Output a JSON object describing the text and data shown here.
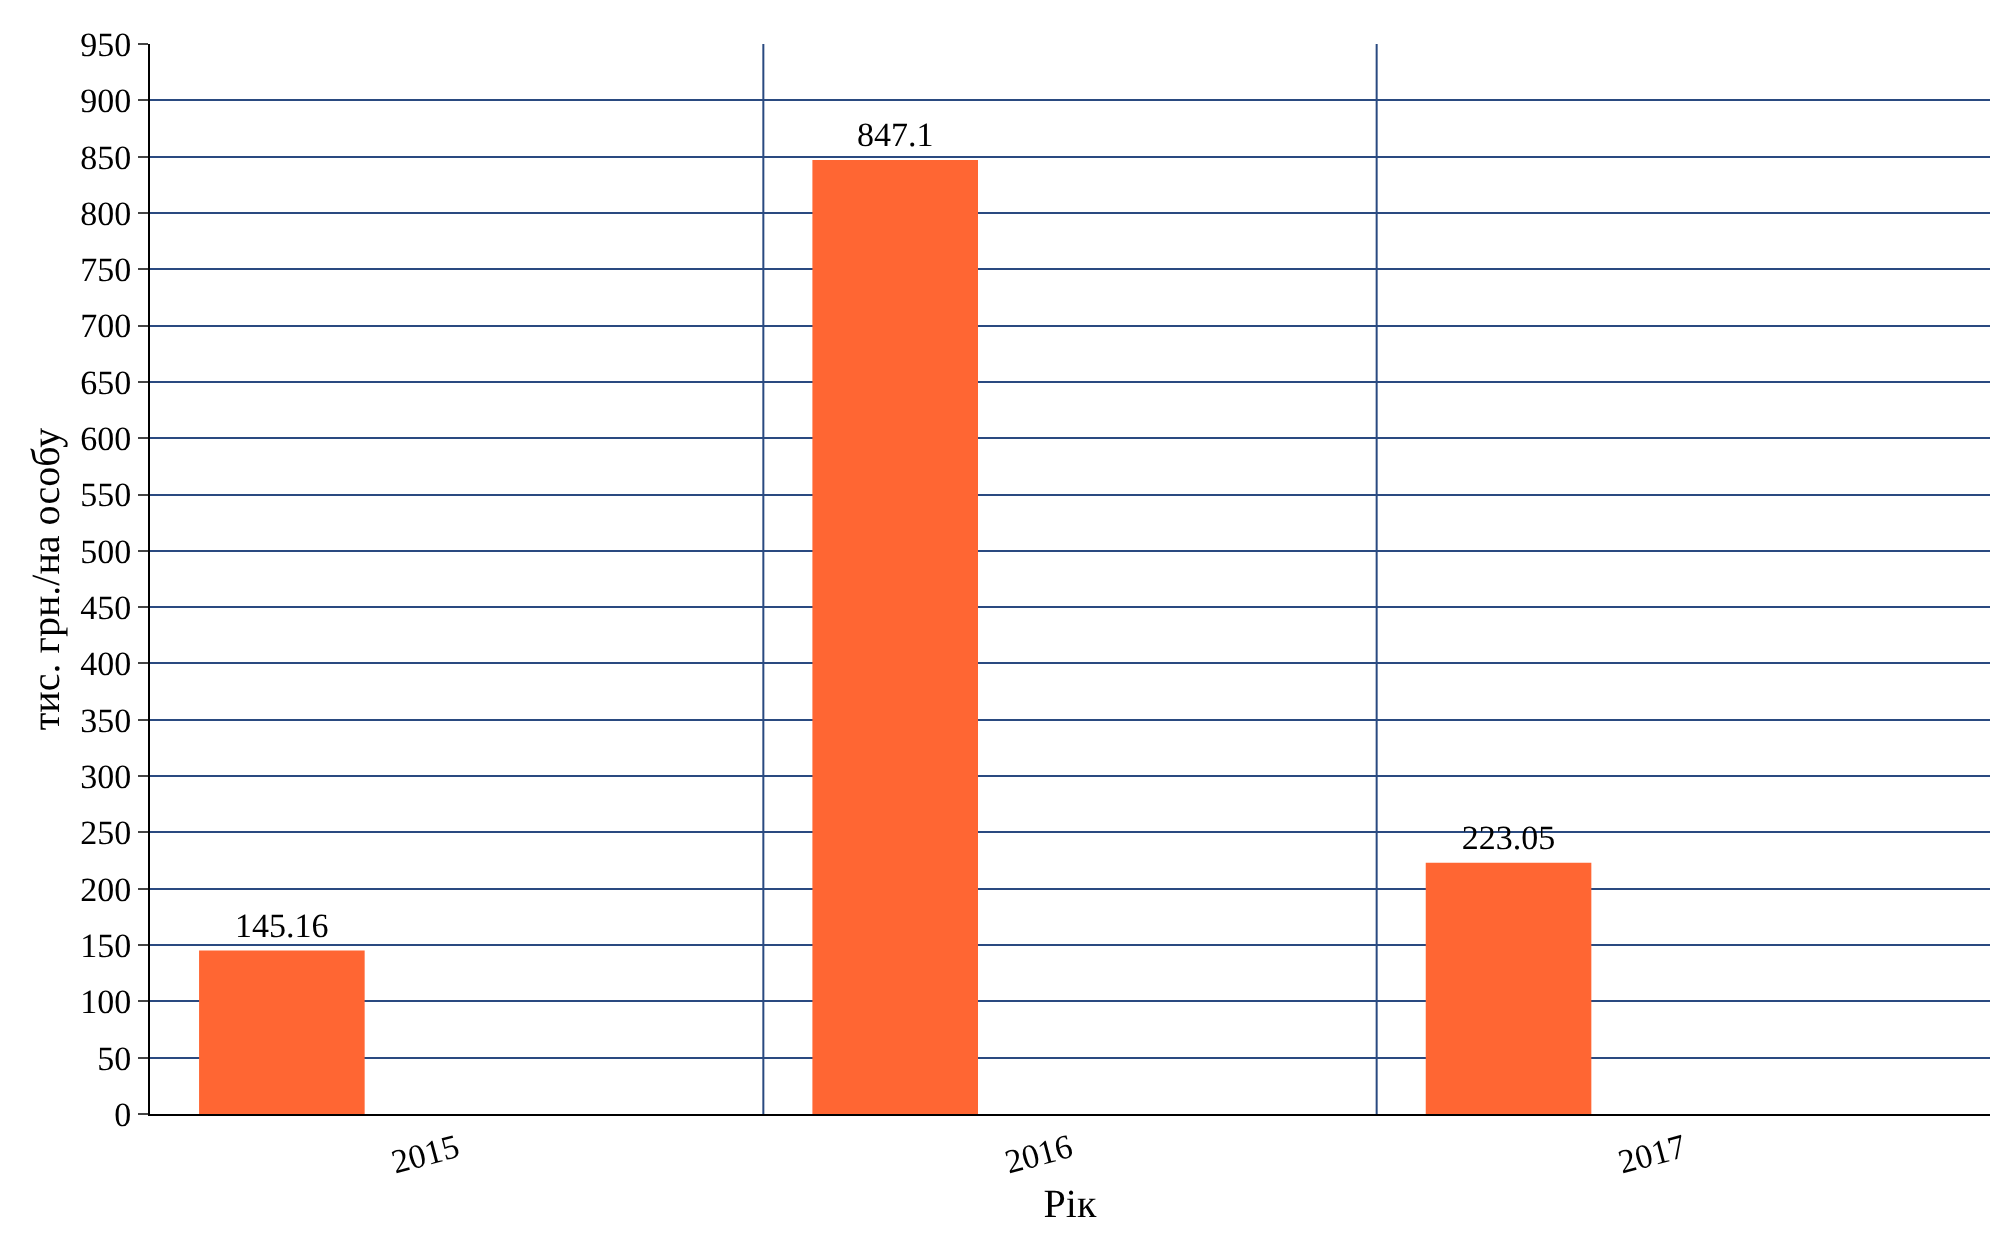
{
  "chart_data": {
    "type": "bar",
    "xlabel": "Рік",
    "ylabel": "тис. грн./на особу",
    "categories": [
      "2015",
      "2016",
      "2017"
    ],
    "values": [
      145.16,
      847.1,
      223.05
    ],
    "color": "#ff6633",
    "ylim": [
      0,
      950
    ],
    "yticks": [
      0,
      50,
      100,
      150,
      200,
      250,
      300,
      350,
      400,
      450,
      500,
      550,
      600,
      650,
      700,
      750,
      800,
      850,
      900,
      950
    ],
    "grid": true,
    "data_labels": true
  }
}
